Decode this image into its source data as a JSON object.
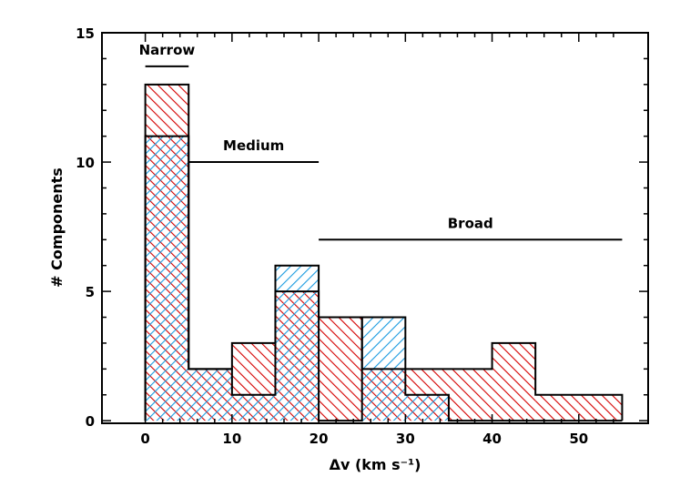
{
  "chart_data": {
    "type": "histogram",
    "xlabel": "Δv (km s⁻¹)",
    "ylabel": "# Components",
    "xlim": [
      -5,
      58
    ],
    "ylim": [
      -0.1,
      15
    ],
    "xticks": [
      0,
      10,
      20,
      30,
      40,
      50
    ],
    "yticks": [
      0,
      5,
      10,
      15
    ],
    "bin_width": 5,
    "series": [
      {
        "name": "red",
        "color": "#d40000",
        "hatch": "forward-diagonal",
        "bins": [
          {
            "x0": 0,
            "x1": 5,
            "count": 13
          },
          {
            "x0": 5,
            "x1": 10,
            "count": 2
          },
          {
            "x0": 10,
            "x1": 15,
            "count": 3
          },
          {
            "x0": 15,
            "x1": 20,
            "count": 5
          },
          {
            "x0": 20,
            "x1": 25,
            "count": 4
          },
          {
            "x0": 25,
            "x1": 30,
            "count": 2
          },
          {
            "x0": 30,
            "x1": 35,
            "count": 2
          },
          {
            "x0": 35,
            "x1": 40,
            "count": 2
          },
          {
            "x0": 40,
            "x1": 45,
            "count": 3
          },
          {
            "x0": 45,
            "x1": 50,
            "count": 1
          },
          {
            "x0": 50,
            "x1": 55,
            "count": 1
          }
        ]
      },
      {
        "name": "blue",
        "color": "#1a9be0",
        "hatch": "back-diagonal",
        "bins": [
          {
            "x0": 0,
            "x1": 5,
            "count": 11
          },
          {
            "x0": 5,
            "x1": 10,
            "count": 2
          },
          {
            "x0": 10,
            "x1": 15,
            "count": 1
          },
          {
            "x0": 15,
            "x1": 20,
            "count": 6
          },
          {
            "x0": 20,
            "x1": 25,
            "count": 0
          },
          {
            "x0": 25,
            "x1": 30,
            "count": 4
          },
          {
            "x0": 30,
            "x1": 35,
            "count": 1
          },
          {
            "x0": 35,
            "x1": 40,
            "count": 0
          },
          {
            "x0": 40,
            "x1": 45,
            "count": 0
          },
          {
            "x0": 45,
            "x1": 50,
            "count": 0
          },
          {
            "x0": 50,
            "x1": 55,
            "count": 0
          }
        ]
      }
    ],
    "annotations": [
      {
        "label": "Narrow",
        "x0": 0,
        "x1": 5,
        "y": 13.7
      },
      {
        "label": "Medium",
        "x0": 5,
        "x1": 20,
        "y": 10.0
      },
      {
        "label": "Broad",
        "x0": 20,
        "x1": 55,
        "y": 7.0
      }
    ]
  }
}
